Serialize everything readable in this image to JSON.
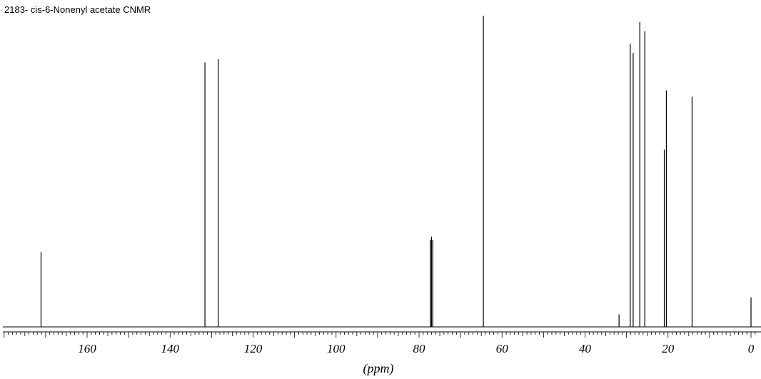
{
  "title": "2183- cis-6-Nonenyl acetate CNMR",
  "chart_data": {
    "type": "line",
    "title": "2183- cis-6-Nonenyl acetate CNMR",
    "xlabel": "(ppm)",
    "ylabel": "",
    "xlim": [
      180,
      -1
    ],
    "x_reversed": true,
    "grid": false,
    "xticks": [
      160,
      140,
      120,
      100,
      80,
      60,
      40,
      20,
      0
    ],
    "xtick_labels": [
      "160",
      "140",
      "120",
      "100",
      "80",
      "60",
      "40",
      "20",
      "0"
    ],
    "peaks": [
      {
        "ppm": 171.1,
        "intensity": 0.24
      },
      {
        "ppm": 131.6,
        "intensity": 0.85
      },
      {
        "ppm": 128.4,
        "intensity": 0.86
      },
      {
        "ppm": 77.3,
        "intensity": 0.28
      },
      {
        "ppm": 77.0,
        "intensity": 0.29
      },
      {
        "ppm": 76.7,
        "intensity": 0.28
      },
      {
        "ppm": 64.5,
        "intensity": 1.0
      },
      {
        "ppm": 31.8,
        "intensity": 0.04
      },
      {
        "ppm": 29.1,
        "intensity": 0.91
      },
      {
        "ppm": 28.4,
        "intensity": 0.88
      },
      {
        "ppm": 26.8,
        "intensity": 0.98
      },
      {
        "ppm": 25.6,
        "intensity": 0.95
      },
      {
        "ppm": 20.9,
        "intensity": 0.57
      },
      {
        "ppm": 20.4,
        "intensity": 0.76
      },
      {
        "ppm": 14.2,
        "intensity": 0.74
      },
      {
        "ppm": 0.0,
        "intensity": 0.095
      }
    ]
  }
}
